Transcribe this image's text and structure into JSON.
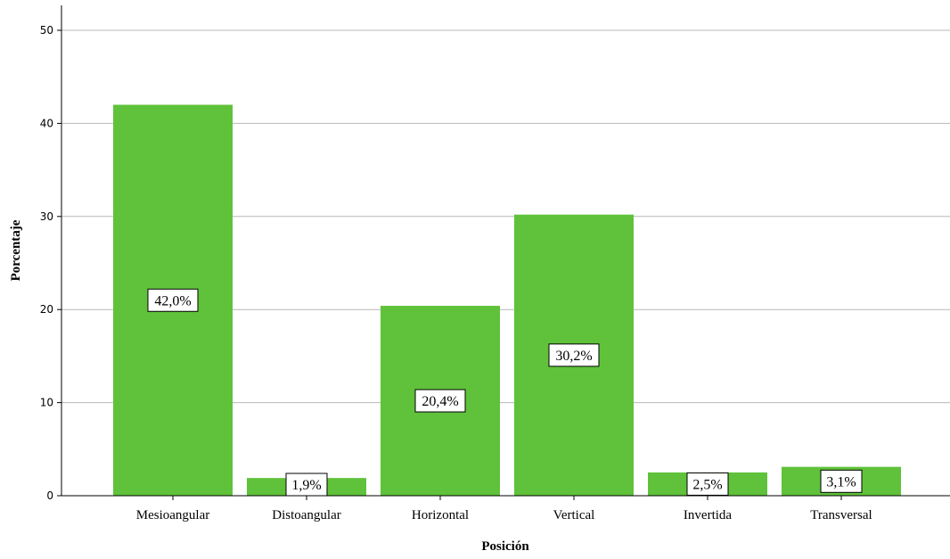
{
  "chart_data": {
    "type": "bar",
    "categories": [
      "Mesioangular",
      "Distoangular",
      "Horizontal",
      "Vertical",
      "Invertida",
      "Transversal"
    ],
    "values": [
      42.0,
      1.9,
      20.4,
      30.2,
      2.5,
      3.1
    ],
    "data_labels": [
      "42,0%",
      "1,9%",
      "20,4%",
      "30,2%",
      "2,5%",
      "3,1%"
    ],
    "xlabel": "Posición",
    "ylabel": "Porcentaje",
    "ylim": [
      0,
      50
    ],
    "yticks": [
      0,
      10,
      20,
      30,
      40,
      50
    ],
    "grid": true,
    "colors": {
      "bar": "#5fc23a"
    }
  }
}
